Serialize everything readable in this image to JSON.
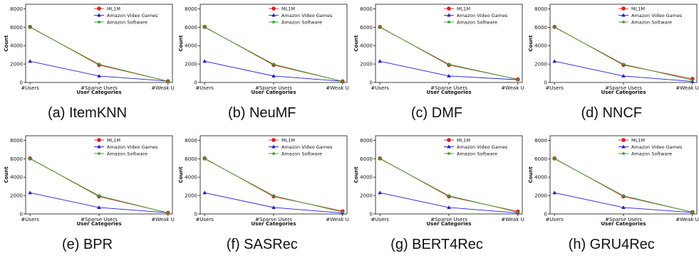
{
  "chart_data": [
    {
      "type": "line",
      "caption": "(a) ItemKNN",
      "categories": [
        "#Users",
        "#Sparse Users",
        "#Weak Users"
      ],
      "xlabel": "User Categories",
      "ylabel": "Count",
      "ylim": [
        0,
        8500
      ],
      "yticks": [
        0,
        2000,
        4000,
        6000,
        8000
      ],
      "grid": false,
      "legend_position": "top-right",
      "series": [
        {
          "name": "ML1M",
          "values": [
            6040,
            1900,
            130
          ],
          "color": "#e41a1c",
          "marker": "circle"
        },
        {
          "name": "Amazon Video Games",
          "values": [
            2300,
            700,
            150
          ],
          "color": "#1f1fd6",
          "marker": "triangle"
        },
        {
          "name": "Amazon Software",
          "values": [
            6000,
            1980,
            120
          ],
          "color": "#2ca02c",
          "marker": "star"
        }
      ]
    },
    {
      "type": "line",
      "caption": "(b) NeuMF",
      "categories": [
        "#Users",
        "#Sparse Users",
        "#Weak Users"
      ],
      "xlabel": "User Categories",
      "ylabel": "Count",
      "ylim": [
        0,
        8500
      ],
      "yticks": [
        0,
        2000,
        4000,
        6000,
        8000
      ],
      "grid": false,
      "legend_position": "top-right",
      "series": [
        {
          "name": "ML1M",
          "values": [
            6040,
            1900,
            120
          ],
          "color": "#e41a1c",
          "marker": "circle"
        },
        {
          "name": "Amazon Video Games",
          "values": [
            2300,
            700,
            130
          ],
          "color": "#1f1fd6",
          "marker": "triangle"
        },
        {
          "name": "Amazon Software",
          "values": [
            6000,
            1980,
            110
          ],
          "color": "#2ca02c",
          "marker": "star"
        }
      ]
    },
    {
      "type": "line",
      "caption": "(c) DMF",
      "categories": [
        "#Users",
        "#Sparse Users",
        "#Weak Users"
      ],
      "xlabel": "User Categories",
      "ylabel": "Count",
      "ylim": [
        0,
        8500
      ],
      "yticks": [
        0,
        2000,
        4000,
        6000,
        8000
      ],
      "grid": false,
      "legend_position": "top-right",
      "series": [
        {
          "name": "ML1M",
          "values": [
            6040,
            1900,
            340
          ],
          "color": "#e41a1c",
          "marker": "circle"
        },
        {
          "name": "Amazon Video Games",
          "values": [
            2300,
            700,
            300
          ],
          "color": "#1f1fd6",
          "marker": "triangle"
        },
        {
          "name": "Amazon Software",
          "values": [
            6000,
            1980,
            320
          ],
          "color": "#2ca02c",
          "marker": "star"
        }
      ]
    },
    {
      "type": "line",
      "caption": "(d) NNCF",
      "categories": [
        "#Users",
        "#Sparse Users",
        "#Weak Users"
      ],
      "xlabel": "User Categories",
      "ylabel": "Count",
      "ylim": [
        0,
        8500
      ],
      "yticks": [
        0,
        2000,
        4000,
        6000,
        8000
      ],
      "grid": false,
      "legend_position": "top-right",
      "series": [
        {
          "name": "ML1M",
          "values": [
            6040,
            1900,
            390
          ],
          "color": "#e41a1c",
          "marker": "circle"
        },
        {
          "name": "Amazon Video Games",
          "values": [
            2300,
            700,
            110
          ],
          "color": "#1f1fd6",
          "marker": "triangle"
        },
        {
          "name": "Amazon Software",
          "values": [
            6000,
            1980,
            260
          ],
          "color": "#2ca02c",
          "marker": "star"
        }
      ]
    },
    {
      "type": "line",
      "caption": "(e) BPR",
      "categories": [
        "#Users",
        "#Sparse Users",
        "#Weak Users"
      ],
      "xlabel": "User Categories",
      "ylabel": "Count",
      "ylim": [
        0,
        8500
      ],
      "yticks": [
        0,
        2000,
        4000,
        6000,
        8000
      ],
      "grid": false,
      "legend_position": "top-right",
      "series": [
        {
          "name": "ML1M",
          "values": [
            6040,
            1900,
            120
          ],
          "color": "#e41a1c",
          "marker": "circle"
        },
        {
          "name": "Amazon Video Games",
          "values": [
            2300,
            700,
            130
          ],
          "color": "#1f1fd6",
          "marker": "triangle"
        },
        {
          "name": "Amazon Software",
          "values": [
            6000,
            1980,
            110
          ],
          "color": "#2ca02c",
          "marker": "star"
        }
      ]
    },
    {
      "type": "line",
      "caption": "(f) SASRec",
      "categories": [
        "#Users",
        "#Sparse Users",
        "#Weak Users"
      ],
      "xlabel": "User Categories",
      "ylabel": "Count",
      "ylim": [
        0,
        8500
      ],
      "yticks": [
        0,
        2000,
        4000,
        6000,
        8000
      ],
      "grid": false,
      "legend_position": "top-right",
      "series": [
        {
          "name": "ML1M",
          "values": [
            6040,
            1900,
            300
          ],
          "color": "#e41a1c",
          "marker": "circle"
        },
        {
          "name": "Amazon Video Games",
          "values": [
            2300,
            700,
            100
          ],
          "color": "#1f1fd6",
          "marker": "triangle"
        },
        {
          "name": "Amazon Software",
          "values": [
            6000,
            1980,
            210
          ],
          "color": "#2ca02c",
          "marker": "star"
        }
      ]
    },
    {
      "type": "line",
      "caption": "(g) BERT4Rec",
      "categories": [
        "#Users",
        "#Sparse Users",
        "#Weak Users"
      ],
      "xlabel": "User Categories",
      "ylabel": "Count",
      "ylim": [
        0,
        8500
      ],
      "yticks": [
        0,
        2000,
        4000,
        6000,
        8000
      ],
      "grid": false,
      "legend_position": "top-right",
      "series": [
        {
          "name": "ML1M",
          "values": [
            6040,
            1900,
            270
          ],
          "color": "#e41a1c",
          "marker": "circle"
        },
        {
          "name": "Amazon Video Games",
          "values": [
            2300,
            700,
            110
          ],
          "color": "#1f1fd6",
          "marker": "triangle"
        },
        {
          "name": "Amazon Software",
          "values": [
            6000,
            1980,
            200
          ],
          "color": "#2ca02c",
          "marker": "star"
        }
      ]
    },
    {
      "type": "line",
      "caption": "(h) GRU4Rec",
      "categories": [
        "#Users",
        "#Sparse Users",
        "#Weak Users"
      ],
      "xlabel": "User Categories",
      "ylabel": "Count",
      "ylim": [
        0,
        8500
      ],
      "yticks": [
        0,
        2000,
        4000,
        6000,
        8000
      ],
      "grid": false,
      "legend_position": "top-right",
      "series": [
        {
          "name": "ML1M",
          "values": [
            6040,
            1900,
            200
          ],
          "color": "#e41a1c",
          "marker": "circle"
        },
        {
          "name": "Amazon Video Games",
          "values": [
            2300,
            700,
            160
          ],
          "color": "#1f1fd6",
          "marker": "triangle"
        },
        {
          "name": "Amazon Software",
          "values": [
            6000,
            1980,
            190
          ],
          "color": "#2ca02c",
          "marker": "star"
        }
      ]
    }
  ]
}
